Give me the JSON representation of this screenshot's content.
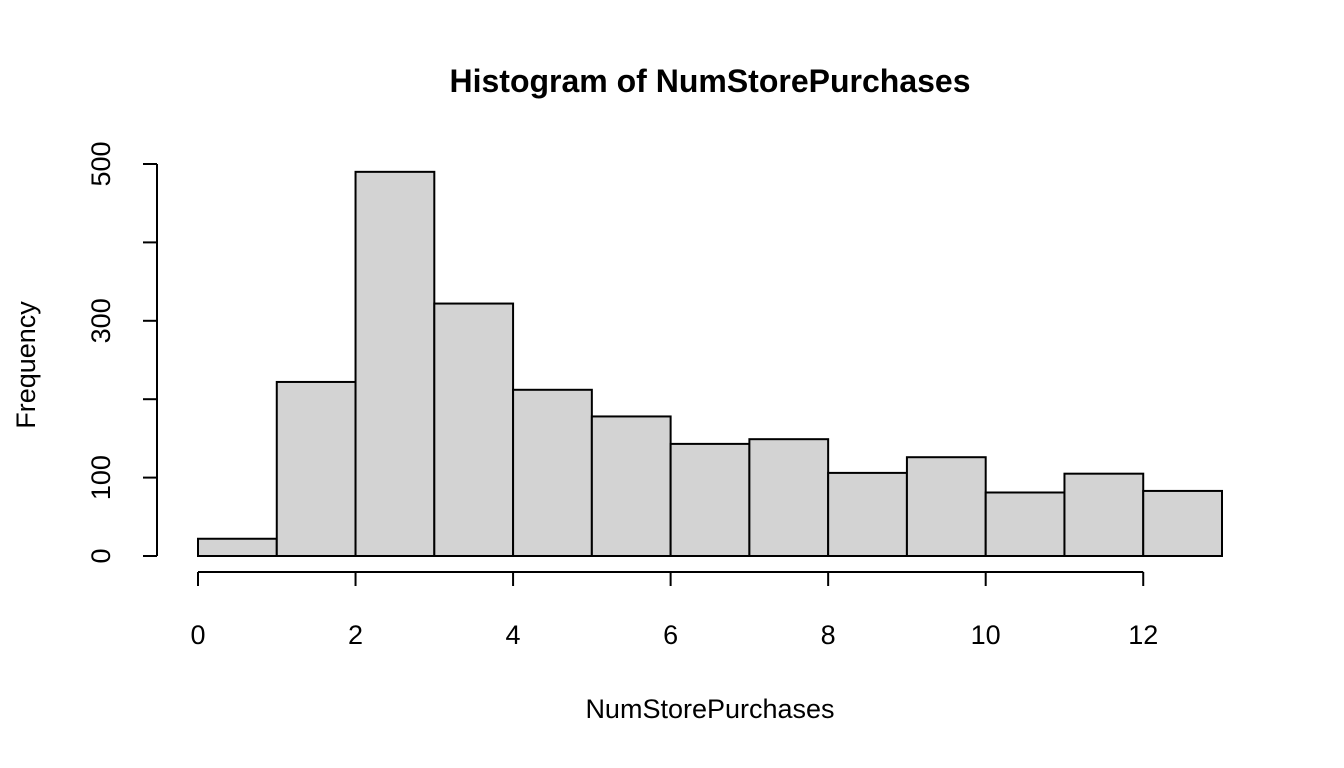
{
  "chart_data": {
    "type": "bar",
    "histogram": true,
    "title": "Histogram of NumStorePurchases",
    "xlabel": "NumStorePurchases",
    "ylabel": "Frequency",
    "bin_edges": [
      0,
      1,
      2,
      3,
      4,
      5,
      6,
      7,
      8,
      9,
      10,
      11,
      12,
      13
    ],
    "values": [
      22,
      222,
      490,
      322,
      212,
      178,
      143,
      149,
      106,
      126,
      81,
      105,
      83
    ],
    "xlim": [
      0,
      13
    ],
    "ylim": [
      0,
      500
    ],
    "x_ticks": [
      0,
      2,
      4,
      6,
      8,
      10,
      12
    ],
    "x_tick_labels": [
      "0",
      "2",
      "4",
      "6",
      "8",
      "10",
      "12"
    ],
    "y_ticks": [
      0,
      100,
      200,
      300,
      400,
      500
    ],
    "y_tick_labels": [
      "0",
      "100",
      "",
      "300",
      "",
      "500"
    ],
    "grid": false,
    "colors": {
      "bar_fill": "#d3d3d3",
      "bar_stroke": "#000000",
      "background": "#ffffff"
    }
  }
}
